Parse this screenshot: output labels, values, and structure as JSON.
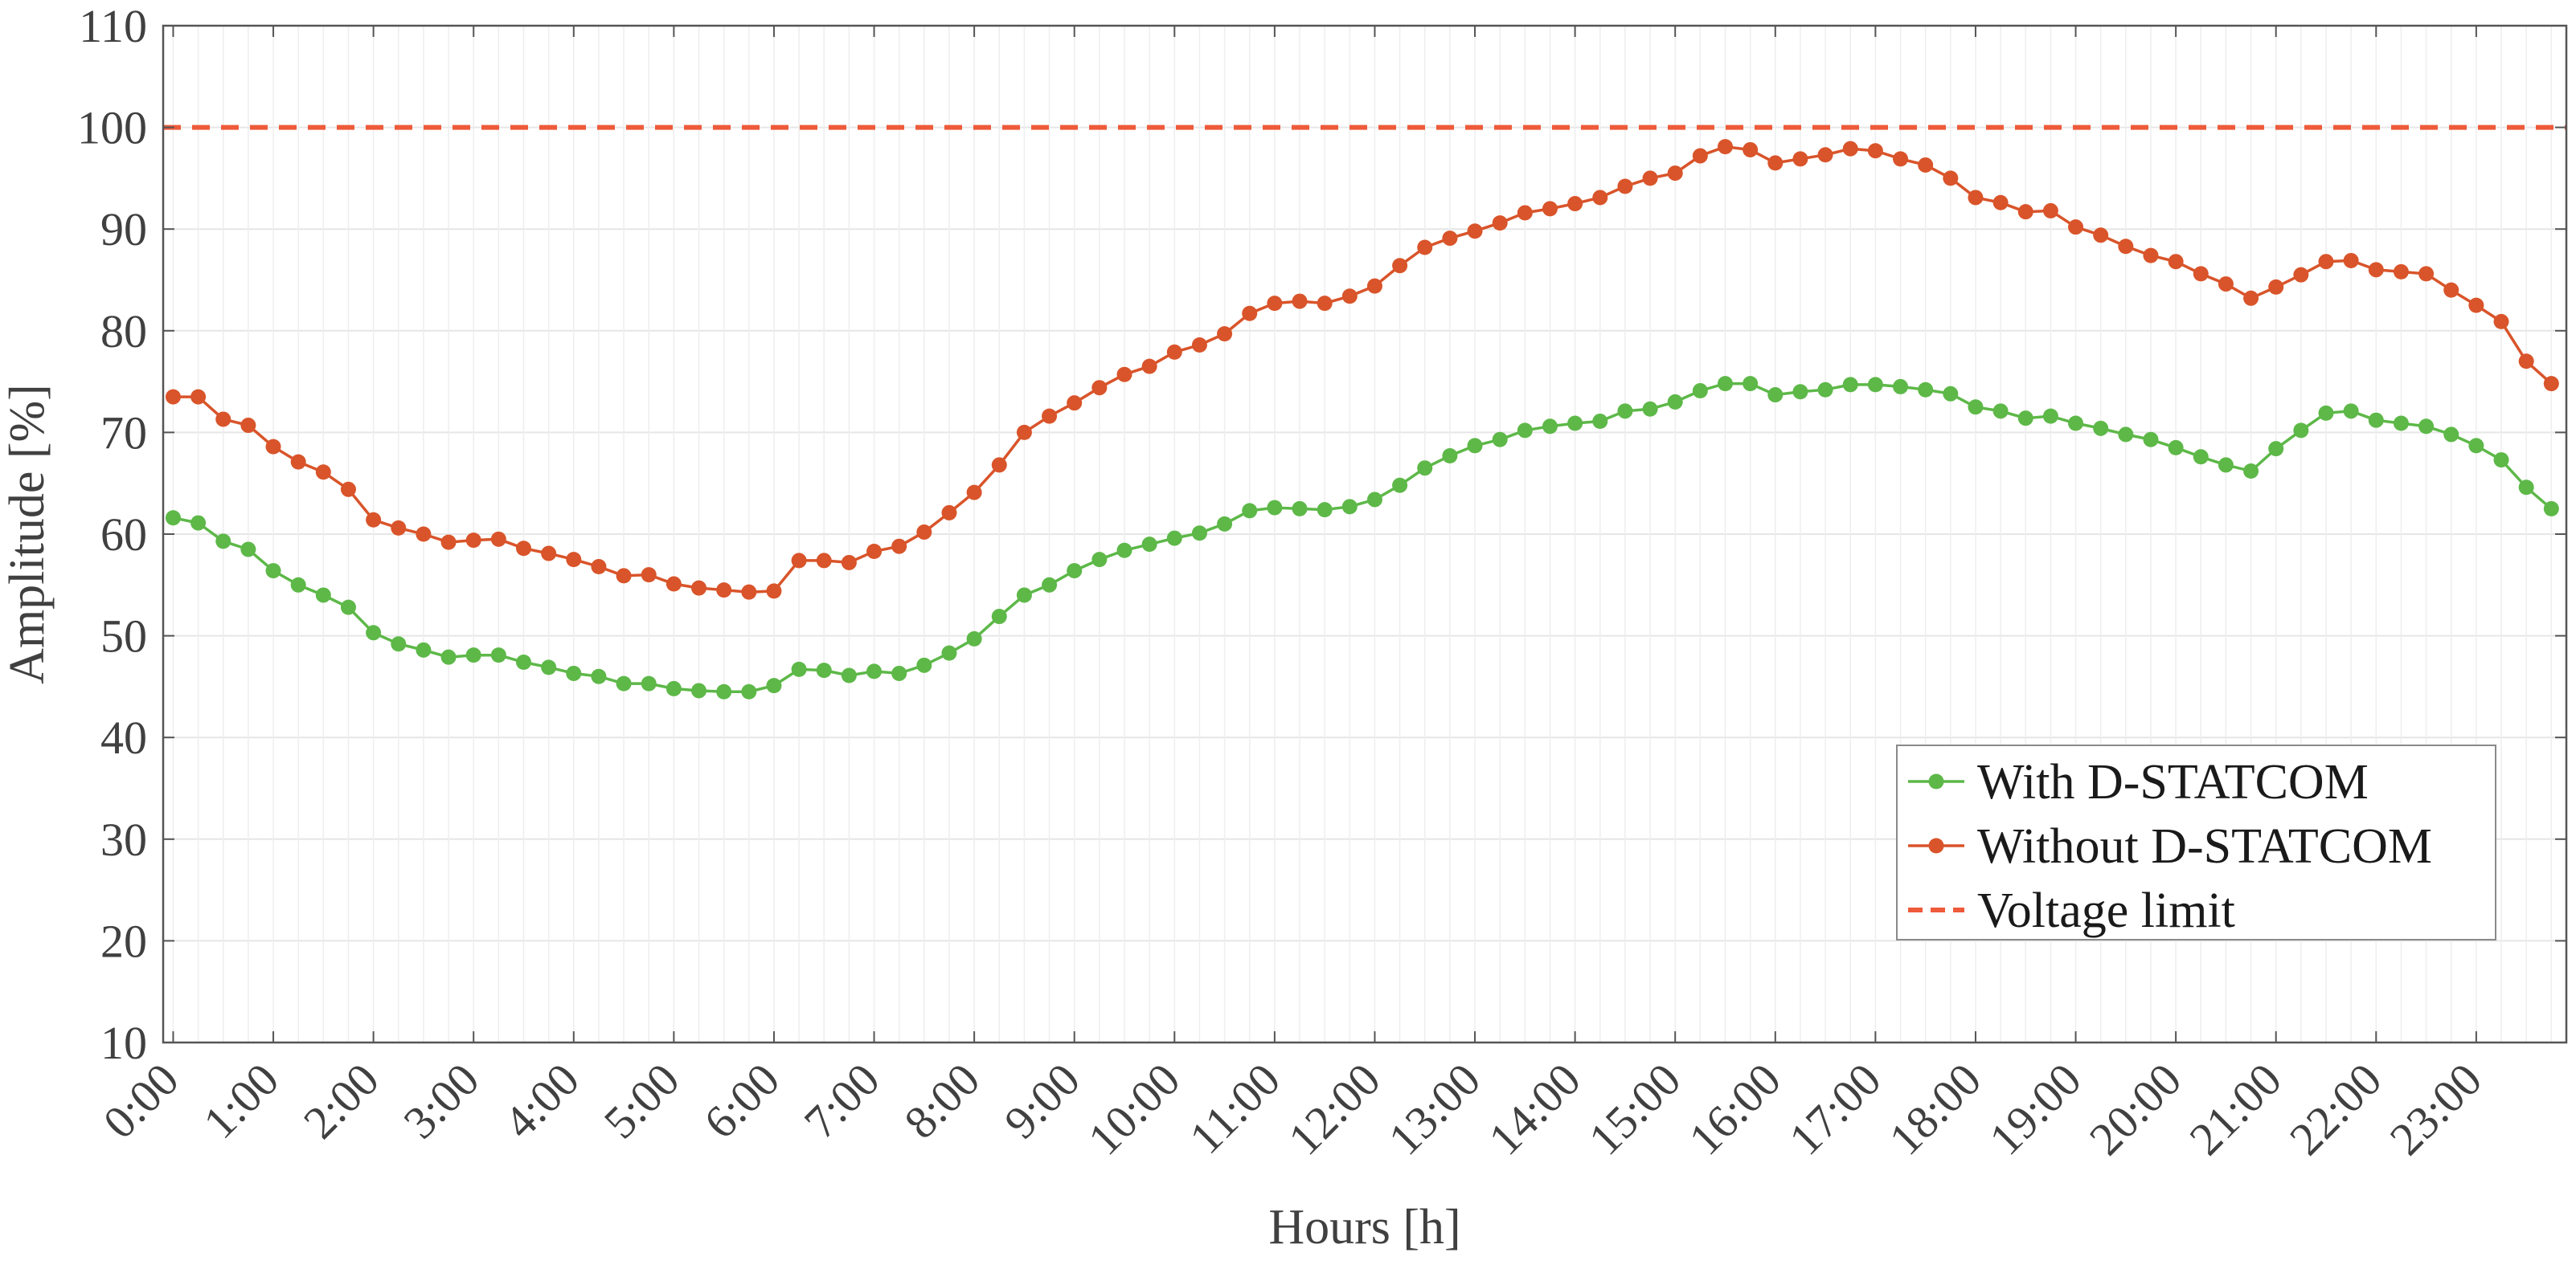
{
  "chart_data": {
    "type": "line",
    "xlabel": "Hours [h]",
    "ylabel": "Amplitude [%]",
    "ylim": [
      10,
      110
    ],
    "yticks": [
      10,
      20,
      30,
      40,
      50,
      60,
      70,
      80,
      90,
      100,
      110
    ],
    "xlim": [
      -0.1,
      23.9
    ],
    "xticks": [
      0,
      1,
      2,
      3,
      4,
      5,
      6,
      7,
      8,
      9,
      10,
      11,
      12,
      13,
      14,
      15,
      16,
      17,
      18,
      19,
      20,
      21,
      22,
      23
    ],
    "xtick_labels": [
      "0:00",
      "1:00",
      "2:00",
      "3:00",
      "4:00",
      "5:00",
      "6:00",
      "7:00",
      "8:00",
      "9:00",
      "10:00",
      "11:00",
      "12:00",
      "13:00",
      "14:00",
      "15:00",
      "16:00",
      "17:00",
      "18:00",
      "19:00",
      "20:00",
      "21:00",
      "22:00",
      "23:00"
    ],
    "grid": true,
    "legend_position": "lower-right",
    "series": [
      {
        "name": "With D-STATCOM",
        "color": "#5db848",
        "style": "solid-markers",
        "x": [
          0,
          0.25,
          0.5,
          0.75,
          1,
          1.25,
          1.5,
          1.75,
          2,
          2.25,
          2.5,
          2.75,
          3,
          3.25,
          3.5,
          3.75,
          4,
          4.25,
          4.5,
          4.75,
          5,
          5.25,
          5.5,
          5.75,
          6,
          6.25,
          6.5,
          6.75,
          7,
          7.25,
          7.5,
          7.75,
          8,
          8.25,
          8.5,
          8.75,
          9,
          9.25,
          9.5,
          9.75,
          10,
          10.25,
          10.5,
          10.75,
          11,
          11.25,
          11.5,
          11.75,
          12,
          12.25,
          12.5,
          12.75,
          13,
          13.25,
          13.5,
          13.75,
          14,
          14.25,
          14.5,
          14.75,
          15,
          15.25,
          15.5,
          15.75,
          16,
          16.25,
          16.5,
          16.75,
          17,
          17.25,
          17.5,
          17.75,
          18,
          18.25,
          18.5,
          18.75,
          19,
          19.25,
          19.5,
          19.75,
          20,
          20.25,
          20.5,
          20.75,
          21,
          21.25,
          21.5,
          21.75,
          22,
          22.25,
          22.5,
          22.75,
          23,
          23.25,
          23.5,
          23.75
        ],
        "values": [
          61.6,
          61.1,
          59.3,
          58.5,
          56.4,
          55.0,
          54.0,
          52.8,
          50.3,
          49.2,
          48.6,
          47.9,
          48.1,
          48.1,
          47.4,
          46.9,
          46.3,
          46.0,
          45.3,
          45.3,
          44.8,
          44.6,
          44.5,
          44.5,
          45.1,
          46.7,
          46.6,
          46.1,
          46.5,
          46.3,
          47.1,
          48.3,
          49.7,
          51.9,
          54.0,
          55.0,
          56.4,
          57.5,
          58.4,
          59.0,
          59.6,
          60.1,
          61.0,
          62.3,
          62.6,
          62.5,
          62.4,
          62.7,
          63.4,
          64.8,
          66.5,
          67.7,
          68.7,
          69.3,
          70.2,
          70.6,
          70.9,
          71.1,
          72.1,
          72.3,
          73.0,
          74.1,
          74.8,
          74.8,
          73.7,
          74.0,
          74.2,
          74.7,
          74.7,
          74.5,
          74.2,
          73.8,
          72.5,
          72.1,
          71.4,
          71.6,
          70.9,
          70.4,
          69.8,
          69.3,
          68.5,
          67.6,
          66.8,
          66.2,
          68.4,
          70.2,
          71.9,
          72.1,
          71.2,
          70.9,
          70.6,
          69.8,
          68.7,
          67.3,
          64.6,
          62.5
        ]
      },
      {
        "name": "Without D-STATCOM",
        "color": "#d9542a",
        "style": "solid-markers",
        "x": [
          0,
          0.25,
          0.5,
          0.75,
          1,
          1.25,
          1.5,
          1.75,
          2,
          2.25,
          2.5,
          2.75,
          3,
          3.25,
          3.5,
          3.75,
          4,
          4.25,
          4.5,
          4.75,
          5,
          5.25,
          5.5,
          5.75,
          6,
          6.25,
          6.5,
          6.75,
          7,
          7.25,
          7.5,
          7.75,
          8,
          8.25,
          8.5,
          8.75,
          9,
          9.25,
          9.5,
          9.75,
          10,
          10.25,
          10.5,
          10.75,
          11,
          11.25,
          11.5,
          11.75,
          12,
          12.25,
          12.5,
          12.75,
          13,
          13.25,
          13.5,
          13.75,
          14,
          14.25,
          14.5,
          14.75,
          15,
          15.25,
          15.5,
          15.75,
          16,
          16.25,
          16.5,
          16.75,
          17,
          17.25,
          17.5,
          17.75,
          18,
          18.25,
          18.5,
          18.75,
          19,
          19.25,
          19.5,
          19.75,
          20,
          20.25,
          20.5,
          20.75,
          21,
          21.25,
          21.5,
          21.75,
          22,
          22.25,
          22.5,
          22.75,
          23,
          23.25,
          23.5,
          23.75
        ],
        "values": [
          73.5,
          73.5,
          71.3,
          70.7,
          68.6,
          67.1,
          66.1,
          64.4,
          61.4,
          60.6,
          60.0,
          59.2,
          59.4,
          59.5,
          58.6,
          58.1,
          57.5,
          56.8,
          55.9,
          56.0,
          55.1,
          54.7,
          54.5,
          54.3,
          54.4,
          57.4,
          57.4,
          57.2,
          58.3,
          58.8,
          60.2,
          62.1,
          64.1,
          66.8,
          70.0,
          71.6,
          72.9,
          74.4,
          75.7,
          76.5,
          77.9,
          78.6,
          79.7,
          81.7,
          82.7,
          82.9,
          82.7,
          83.4,
          84.4,
          86.4,
          88.2,
          89.1,
          89.8,
          90.6,
          91.6,
          92.0,
          92.5,
          93.1,
          94.2,
          95.0,
          95.5,
          97.2,
          98.1,
          97.8,
          96.5,
          96.9,
          97.3,
          97.9,
          97.7,
          96.9,
          96.3,
          95.0,
          93.1,
          92.6,
          91.7,
          91.8,
          90.2,
          89.4,
          88.3,
          87.4,
          86.8,
          85.6,
          84.6,
          83.2,
          84.3,
          85.5,
          86.8,
          86.9,
          86.0,
          85.8,
          85.6,
          84.0,
          82.5,
          80.9,
          77.0,
          74.8
        ]
      },
      {
        "name": "Voltage limit",
        "color": "#ee5a3a",
        "style": "dashed",
        "x": [
          -0.1,
          23.9
        ],
        "values": [
          100,
          100
        ]
      }
    ]
  }
}
